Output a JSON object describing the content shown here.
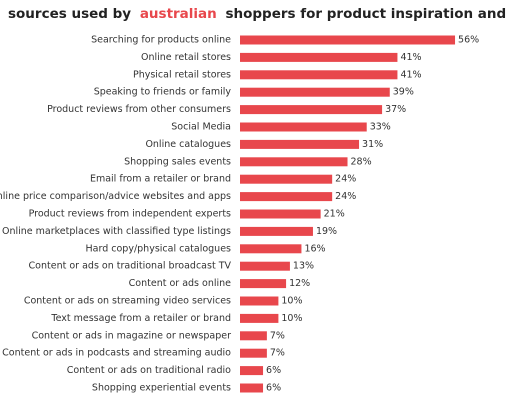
{
  "chart_data": {
    "type": "bar",
    "orientation": "horizontal",
    "title": [
      "sources used by",
      "australian",
      "shoppers for product inspiration and discovery"
    ],
    "title_colors": [
      "#222222",
      "#e8474c",
      "#222222"
    ],
    "categories": [
      "Searching for products online",
      "Online retail stores",
      "Physical retail stores",
      "Speaking to friends or family",
      "Product reviews from other consumers",
      "Social Media",
      "Online catalogues",
      "Shopping sales events",
      "Email from a retailer or brand",
      "Online price comparison/advice websites and apps",
      "Product reviews from independent experts",
      "Online marketplaces with classified type listings",
      "Hard copy/physical catalogues",
      "Content or ads on traditional broadcast TV",
      "Content or ads online",
      "Content or ads on streaming video services",
      "Text message from a retailer or brand",
      "Content or ads in magazine or newspaper",
      "Content or ads in podcasts and streaming audio",
      "Content or ads on traditional radio",
      "Shopping experiential events"
    ],
    "values": [
      56,
      41,
      41,
      39,
      37,
      33,
      31,
      28,
      24,
      24,
      21,
      19,
      16,
      13,
      12,
      10,
      10,
      7,
      7,
      6,
      6
    ],
    "value_labels": [
      "56%",
      "41%",
      "41%",
      "39%",
      "37%",
      "33%",
      "31%",
      "28%",
      "24%",
      "24%",
      "21%",
      "19%",
      "16%",
      "13%",
      "12%",
      "10%",
      "10%",
      "7%",
      "7%",
      "6%",
      "6%"
    ],
    "color": "#e8474c"
  }
}
